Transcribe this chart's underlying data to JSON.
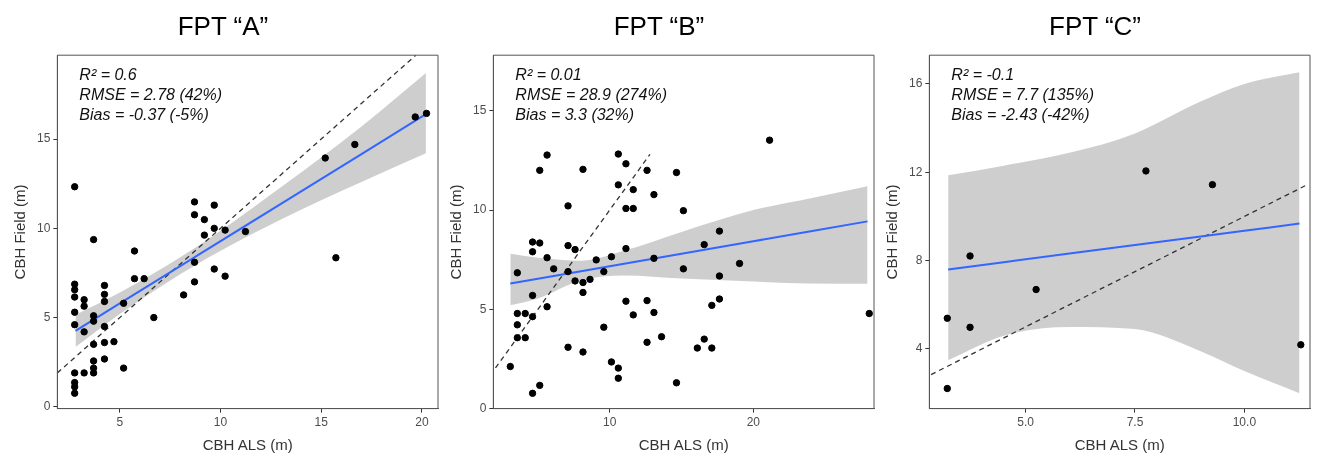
{
  "chart_data": [
    {
      "type": "scatter",
      "title": "FPT “A”",
      "xlabel": "CBH ALS (m)",
      "ylabel": "CBH Field (m)",
      "annotations": [
        "R² = 0.6",
        "RMSE = 2.78 (42%)",
        "Bias = -0.37 (-5%)"
      ],
      "xlim": [
        1.9,
        20.8
      ],
      "ylim": [
        -0.1,
        19.7
      ],
      "xticks": [
        5,
        10,
        15,
        20
      ],
      "yticks": [
        0,
        5,
        10,
        15
      ],
      "grid": false,
      "series": [
        {
          "type": "scatter",
          "color": "#000000",
          "marker": "circle",
          "x": [
            2.76,
            2.76,
            2.76,
            2.76,
            2.76,
            2.76,
            2.76,
            2.76,
            2.76,
            2.76,
            3.23,
            3.23,
            3.23,
            3.23,
            3.7,
            3.7,
            3.7,
            3.7,
            3.7,
            3.7,
            3.7,
            4.24,
            4.24,
            4.24,
            4.24,
            4.24,
            4.24,
            4.71,
            5.19,
            5.19,
            5.73,
            5.73,
            6.21,
            6.69,
            8.17,
            8.71,
            8.71,
            8.71,
            8.71,
            9.2,
            9.2,
            9.69,
            9.69,
            9.69,
            10.23,
            10.23,
            11.24,
            15.2,
            15.73,
            16.67,
            19.67,
            20.23
          ],
          "values": [
            12.33,
            6.87,
            6.56,
            6.15,
            5.3,
            4.6,
            1.9,
            1.36,
            1.12,
            0.76,
            6.0,
            5.64,
            4.2,
            1.9,
            9.37,
            5.1,
            4.8,
            3.5,
            2.57,
            2.17,
            1.9,
            6.8,
            6.3,
            5.9,
            4.5,
            3.6,
            2.68,
            3.65,
            5.8,
            2.17,
            8.73,
            7.18,
            7.18,
            5.0,
            6.27,
            11.48,
            10.76,
            8.1,
            7.0,
            10.49,
            9.62,
            11.3,
            10.0,
            7.72,
            9.9,
            7.32,
            9.82,
            13.94,
            8.35,
            14.7,
            16.24,
            16.44
          ]
        },
        {
          "type": "line",
          "color": "#3366ff",
          "marker": "none",
          "x": [
            2.8,
            5,
            9,
            13,
            17,
            20.2
          ],
          "values": [
            4.25,
            5.79,
            8.58,
            11.37,
            14.16,
            16.4
          ],
          "lower": [
            3.35,
            5.2,
            8.1,
            10.5,
            12.6,
            14.2
          ],
          "upper": [
            5.15,
            6.4,
            9.1,
            12.3,
            15.7,
            18.7
          ]
        },
        {
          "type": "line",
          "color": "#333333",
          "marker": "none",
          "line_style": "dashed",
          "x": [
            1.9,
            19.7
          ],
          "values": [
            1.9,
            19.7
          ]
        }
      ]
    },
    {
      "type": "scatter",
      "title": "FPT “B”",
      "xlabel": "CBH ALS (m)",
      "ylabel": "CBH Field (m)",
      "annotations": [
        "R² = 0.01",
        "RMSE = 28.9 (274%)",
        "Bias = 3.3 (32%)"
      ],
      "xlim": [
        1.9,
        28.4
      ],
      "ylim": [
        0,
        17.8
      ],
      "xticks": [
        10,
        20
      ],
      "yticks": [
        0,
        5,
        10,
        15
      ],
      "grid": false,
      "series": [
        {
          "type": "scatter",
          "color": "#000000",
          "marker": "circle",
          "x": [
            3.08,
            3.57,
            3.57,
            3.57,
            3.57,
            4.12,
            4.12,
            4.63,
            4.63,
            4.63,
            4.63,
            4.63,
            5.13,
            5.13,
            5.13,
            5.64,
            5.64,
            5.64,
            6.1,
            7.1,
            7.1,
            7.1,
            7.1,
            7.59,
            7.59,
            8.14,
            8.14,
            8.14,
            8.14,
            8.63,
            9.06,
            9.59,
            9.59,
            10.12,
            10.12,
            10.6,
            10.6,
            10.6,
            10.6,
            11.13,
            11.13,
            11.13,
            11.13,
            11.64,
            11.64,
            11.64,
            12.6,
            12.6,
            12.6,
            13.08,
            13.08,
            13.08,
            13.61,
            14.65,
            14.65,
            15.13,
            15.13,
            16.1,
            16.58,
            16.58,
            17.11,
            17.11,
            17.64,
            17.64,
            17.64,
            19.04,
            21.13,
            28.07
          ],
          "values": [
            2.12,
            6.84,
            4.79,
            4.22,
            3.57,
            4.79,
            3.57,
            8.39,
            7.9,
            5.7,
            4.63,
            0.77,
            8.34,
            12.0,
            1.17,
            12.77,
            7.6,
            5.13,
            7.04,
            10.21,
            8.21,
            6.9,
            3.09,
            8.01,
            6.43,
            6.35,
            5.85,
            12.05,
            2.85,
            6.51,
            7.49,
            6.9,
            4.1,
            7.65,
            2.35,
            12.82,
            11.27,
            2.04,
            1.53,
            12.33,
            10.08,
            8.06,
            5.41,
            11.03,
            10.08,
            4.72,
            12.0,
            5.44,
            3.34,
            10.78,
            7.57,
            4.84,
            3.62,
            11.89,
            1.3,
            9.97,
            7.04,
            3.05,
            8.26,
            3.5,
            3.05,
            5.2,
            8.94,
            6.68,
            5.52,
            7.31,
            13.52,
            4.79
          ]
        },
        {
          "type": "line",
          "color": "#3366ff",
          "marker": "none",
          "x": [
            3.08,
            5,
            8,
            11,
            15,
            20,
            24,
            27.95
          ],
          "values": [
            6.3,
            6.54,
            6.92,
            7.3,
            7.8,
            8.43,
            8.93,
            9.43
          ],
          "lower": [
            5.21,
            5.55,
            6.45,
            6.7,
            6.55,
            6.4,
            6.3,
            6.29
          ],
          "upper": [
            7.8,
            7.6,
            7.45,
            7.95,
            8.9,
            10.0,
            10.6,
            11.2
          ]
        },
        {
          "type": "line",
          "color": "#333333",
          "marker": "none",
          "line_style": "dashed",
          "x": [
            2.05,
            12.8
          ],
          "values": [
            2.05,
            12.8
          ]
        }
      ]
    },
    {
      "type": "scatter",
      "title": "FPT “C”",
      "xlabel": "CBH ALS (m)",
      "ylabel": "CBH Field (m)",
      "annotations": [
        "R² = -0.1",
        "RMSE = 7.7 (135%)",
        "Bias = -2.43 (-42%)"
      ],
      "xlim": [
        2.8,
        11.5
      ],
      "ylim": [
        1.3,
        17.3
      ],
      "xticks": [
        {
          "value": 5,
          "label": "5.0"
        },
        {
          "value": 7.5,
          "label": "7.5"
        },
        {
          "value": 10,
          "label": "10.0"
        }
      ],
      "yticks": [
        4,
        8,
        12,
        16
      ],
      "grid": false,
      "series": [
        {
          "type": "scatter",
          "color": "#000000",
          "marker": "circle",
          "x": [
            3.21,
            3.21,
            3.73,
            3.73,
            5.24,
            7.75,
            9.27,
            11.29
          ],
          "values": [
            5.39,
            2.21,
            8.21,
            4.98,
            6.69,
            12.06,
            11.44,
            4.19
          ]
        },
        {
          "type": "line",
          "color": "#3366ff",
          "marker": "none",
          "x": [
            3.23,
            4.5,
            6,
            7.5,
            9,
            10,
            11.26
          ],
          "values": [
            7.6,
            7.93,
            8.32,
            8.71,
            9.09,
            9.35,
            9.68
          ],
          "lower": [
            3.49,
            4.6,
            5.0,
            4.9,
            3.9,
            3.0,
            2.0
          ],
          "upper": [
            11.86,
            12.3,
            12.88,
            13.76,
            15.2,
            16.0,
            16.53
          ]
        },
        {
          "type": "line",
          "color": "#333333",
          "marker": "none",
          "line_style": "dashed",
          "x": [
            2.84,
            11.4
          ],
          "values": [
            2.84,
            11.4
          ]
        }
      ]
    }
  ]
}
